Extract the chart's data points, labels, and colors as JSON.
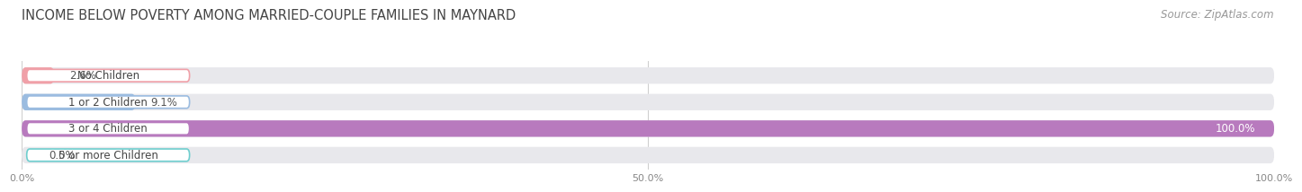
{
  "title": "INCOME BELOW POVERTY AMONG MARRIED-COUPLE FAMILIES IN MAYNARD",
  "source": "Source: ZipAtlas.com",
  "categories": [
    "No Children",
    "1 or 2 Children",
    "3 or 4 Children",
    "5 or more Children"
  ],
  "values": [
    2.6,
    9.1,
    100.0,
    0.0
  ],
  "bar_colors": [
    "#f0a0a8",
    "#9bbce0",
    "#b87abe",
    "#6ecece"
  ],
  "bg_bar_color": "#e8e8ec",
  "xlim": [
    0,
    100
  ],
  "xticks": [
    0.0,
    50.0,
    100.0
  ],
  "xtick_labels": [
    "0.0%",
    "50.0%",
    "100.0%"
  ],
  "title_fontsize": 10.5,
  "label_fontsize": 8.5,
  "value_fontsize": 8.5,
  "source_fontsize": 8.5,
  "background_color": "#ffffff",
  "bar_height": 0.62,
  "bar_gap": 1.0
}
